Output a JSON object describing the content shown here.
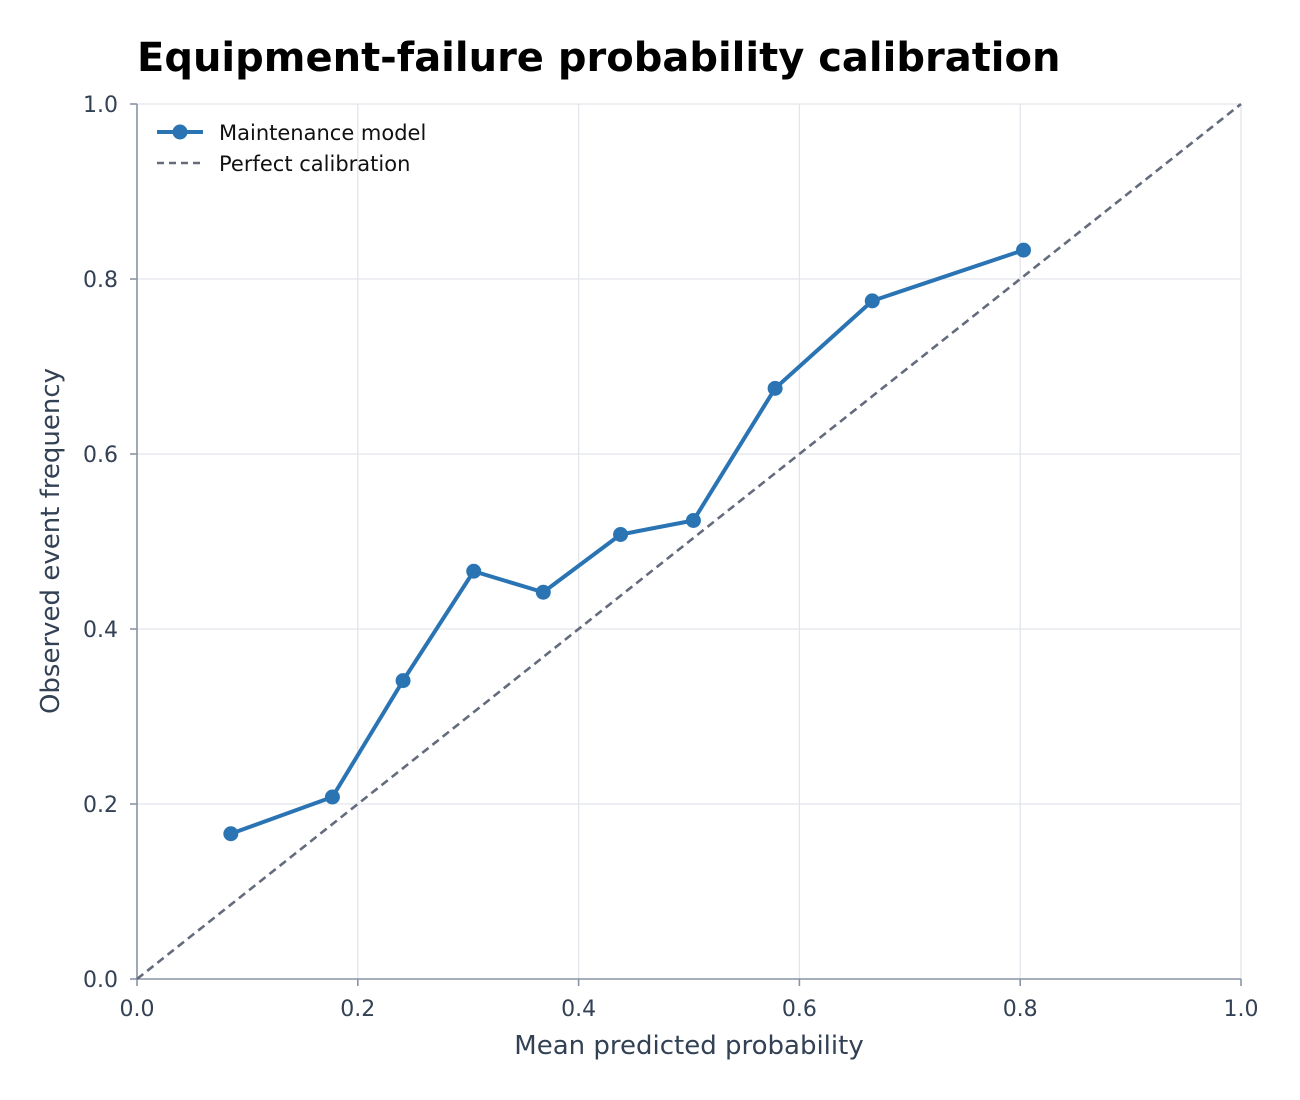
{
  "chart_data": {
    "type": "line",
    "title": "Equipment-failure probability calibration",
    "xlabel": "Mean predicted probability",
    "ylabel": "Observed event frequency",
    "xlim": [
      0.0,
      1.0
    ],
    "ylim": [
      0.0,
      1.0
    ],
    "xticks": [
      "0.0",
      "0.2",
      "0.4",
      "0.6",
      "0.8",
      "1.0"
    ],
    "yticks": [
      "0.0",
      "0.2",
      "0.4",
      "0.6",
      "0.8",
      "1.0"
    ],
    "grid": true,
    "legend_position": "top-left",
    "series": [
      {
        "name": "Maintenance model",
        "style": "solid-with-markers",
        "color": "#2a74b4",
        "x": [
          0.085,
          0.177,
          0.241,
          0.305,
          0.368,
          0.438,
          0.504,
          0.578,
          0.666,
          0.803
        ],
        "y": [
          0.166,
          0.208,
          0.341,
          0.466,
          0.442,
          0.508,
          0.524,
          0.675,
          0.775,
          0.833
        ]
      },
      {
        "name": "Perfect calibration",
        "style": "dashed",
        "color": "#646b7c",
        "x": [
          0.0,
          1.0
        ],
        "y": [
          0.0,
          1.0
        ]
      }
    ]
  }
}
